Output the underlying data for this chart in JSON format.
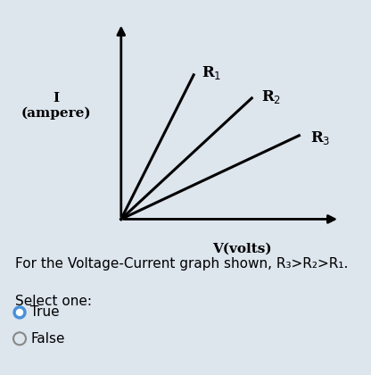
{
  "background_color": "#dde5ed",
  "graph_bg": "#ffffff",
  "line_color": "#000000",
  "line_width": 2.2,
  "angles_deg": [
    70,
    52,
    33
  ],
  "labels": [
    "R$_1$",
    "R$_2$",
    "R$_3$"
  ],
  "axis_label_I": "I\n(ampere)",
  "axis_label_V": "V(volts)",
  "question_text": "For the Voltage-Current graph shown, R₃>R₂>R₁.",
  "select_text": "Select one:",
  "true_text": "True",
  "false_text": "False",
  "font_size_axis_labels": 11,
  "font_size_line_labels": 12,
  "font_size_question": 11,
  "font_size_options": 11,
  "radio_selected_color": "#4a90d9",
  "radio_unselected_color": "#ffffff"
}
